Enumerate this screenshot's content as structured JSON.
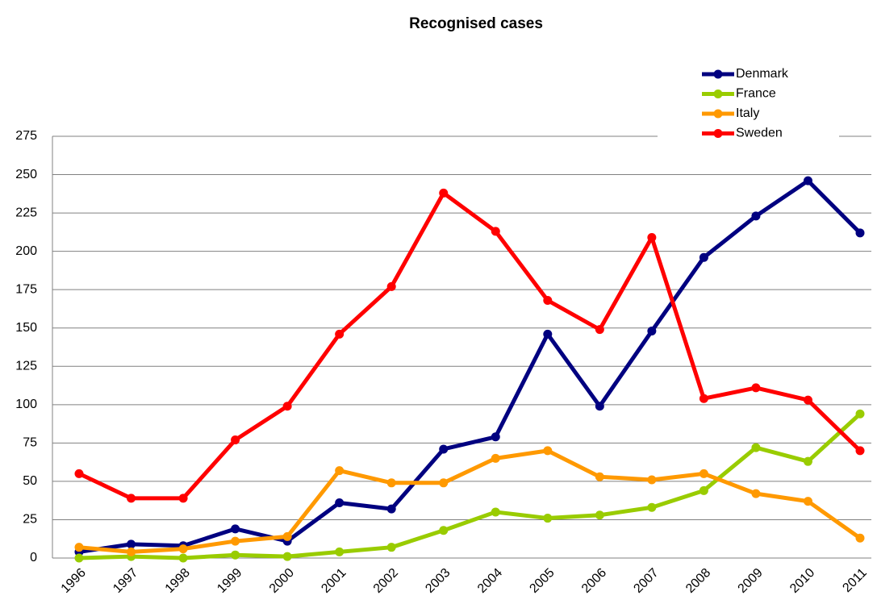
{
  "chart_data": {
    "type": "line",
    "title": "Recognised cases",
    "categories": [
      "1996",
      "1997",
      "1998",
      "1999",
      "2000",
      "2001",
      "2002",
      "2003",
      "2004",
      "2005",
      "2006",
      "2007",
      "2008",
      "2009",
      "2010",
      "2011"
    ],
    "series": [
      {
        "name": "Denmark",
        "color": "#000080",
        "values": [
          4,
          9,
          8,
          19,
          11,
          36,
          32,
          71,
          79,
          146,
          99,
          148,
          196,
          223,
          246,
          212
        ]
      },
      {
        "name": "France",
        "color": "#99cc00",
        "values": [
          0,
          1,
          0,
          2,
          1,
          4,
          7,
          18,
          30,
          26,
          28,
          33,
          44,
          72,
          63,
          94
        ]
      },
      {
        "name": "Italy",
        "color": "#ff9900",
        "values": [
          7,
          4,
          6,
          11,
          14,
          57,
          49,
          49,
          65,
          70,
          53,
          51,
          55,
          42,
          37,
          13
        ]
      },
      {
        "name": "Sweden",
        "color": "#ff0000",
        "values": [
          55,
          39,
          39,
          77,
          99,
          146,
          177,
          238,
          213,
          168,
          149,
          209,
          104,
          111,
          103,
          70
        ]
      }
    ],
    "ylim": [
      0,
      275
    ],
    "yticks": [
      0,
      25,
      50,
      75,
      100,
      125,
      150,
      175,
      200,
      225,
      250,
      275
    ],
    "grid": true,
    "legend": "top-right"
  }
}
